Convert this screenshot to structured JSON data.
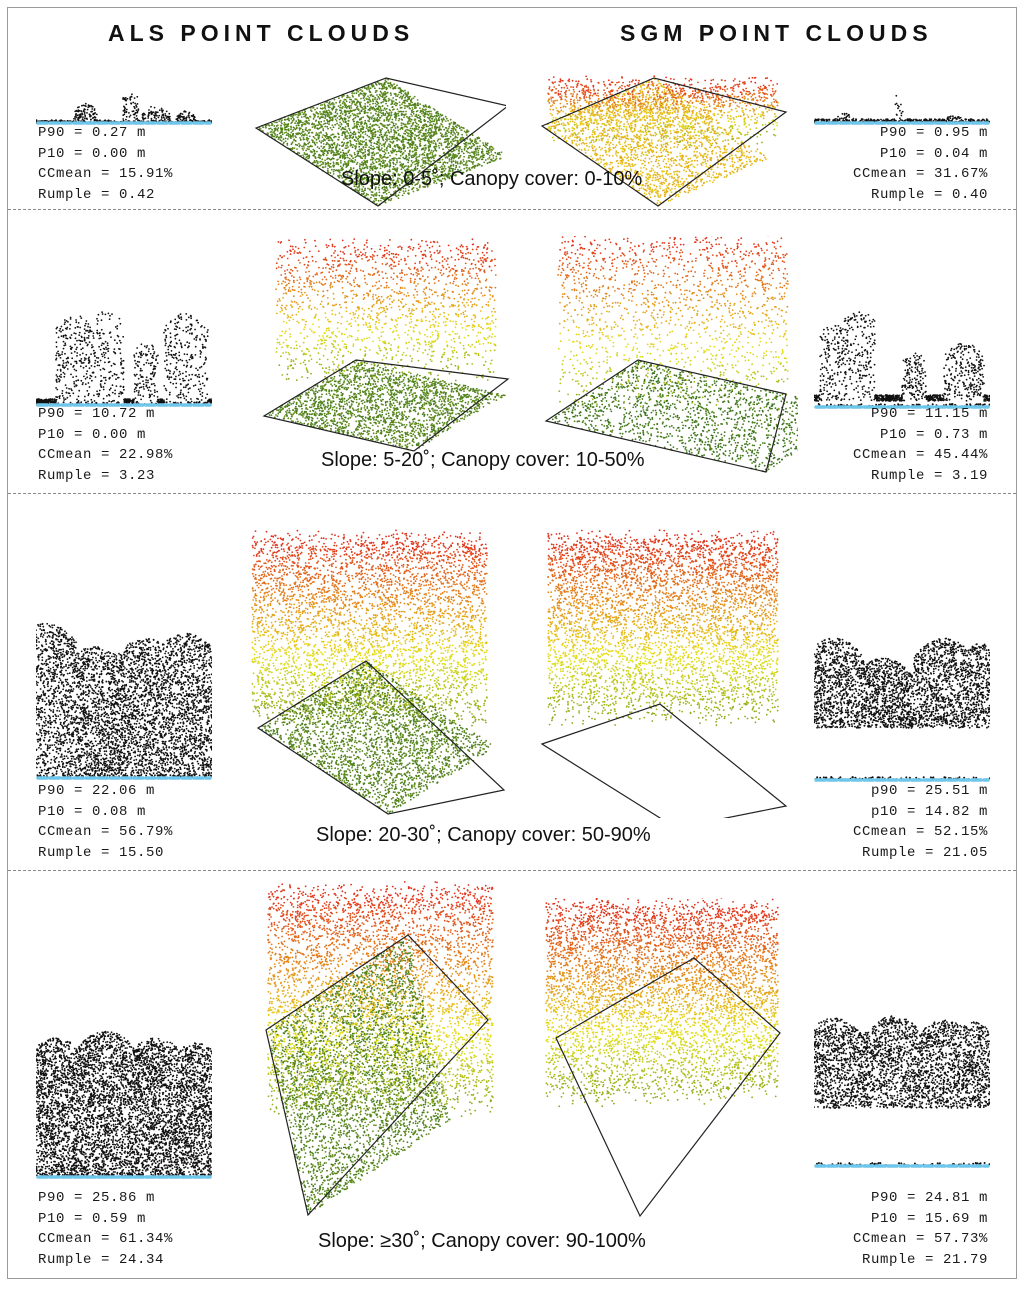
{
  "headers": {
    "als": "ALS POINT CLOUDS",
    "sgm": "SGM POINT CLOUDS"
  },
  "colors": {
    "ground_line": "#6ec6ea",
    "profile_points": "#111111",
    "gradient_low": "#2e6b1f",
    "gradient_mid": "#e6e21a",
    "gradient_high": "#e02d1c",
    "frame": "#222222"
  },
  "rows": [
    {
      "caption": "Slope: 0-5˚; Canopy cover: 0-10%",
      "als": {
        "p90": "P90 = 0.27 m",
        "p10": "P10 = 0.00 m",
        "cc": "CCmean = 15.91%",
        "rumple": "Rumple = 0.42"
      },
      "sgm": {
        "p90": "P90 = 0.95 m",
        "p10": "P10 = 0.04 m",
        "cc": "CCmean = 31.67%",
        "rumple": "Rumple = 0.40"
      }
    },
    {
      "caption": "Slope: 5-20˚; Canopy cover: 10-50%",
      "als": {
        "p90": "P90 = 10.72 m",
        "p10": "P10 = 0.00 m",
        "cc": "CCmean = 22.98%",
        "rumple": "Rumple = 3.23"
      },
      "sgm": {
        "p90": "P90 = 11.15 m",
        "p10": "P10 = 0.73 m",
        "cc": "CCmean = 45.44%",
        "rumple": "Rumple = 3.19"
      }
    },
    {
      "caption": "Slope: 20-30˚; Canopy cover: 50-90%",
      "als": {
        "p90": "P90 = 22.06 m",
        "p10": "P10 = 0.08 m",
        "cc": "CCmean = 56.79%",
        "rumple": "Rumple = 15.50"
      },
      "sgm": {
        "p90": "p90 = 25.51 m",
        "p10": "p10 = 14.82 m",
        "cc": "CCmean = 52.15%",
        "rumple": "Rumple = 21.05"
      }
    },
    {
      "caption": "Slope: ≥30˚; Canopy cover: 90-100%",
      "als": {
        "p90": "P90 = 25.86 m",
        "p10": "P10 = 0.59 m",
        "cc": "CCmean = 61.34%",
        "rumple": "Rumple = 24.34"
      },
      "sgm": {
        "p90": "P90 = 24.81 m",
        "p10": "P10 = 15.69 m",
        "cc": "CCmean = 57.73%",
        "rumple": "Rumple = 21.79"
      }
    }
  ]
}
